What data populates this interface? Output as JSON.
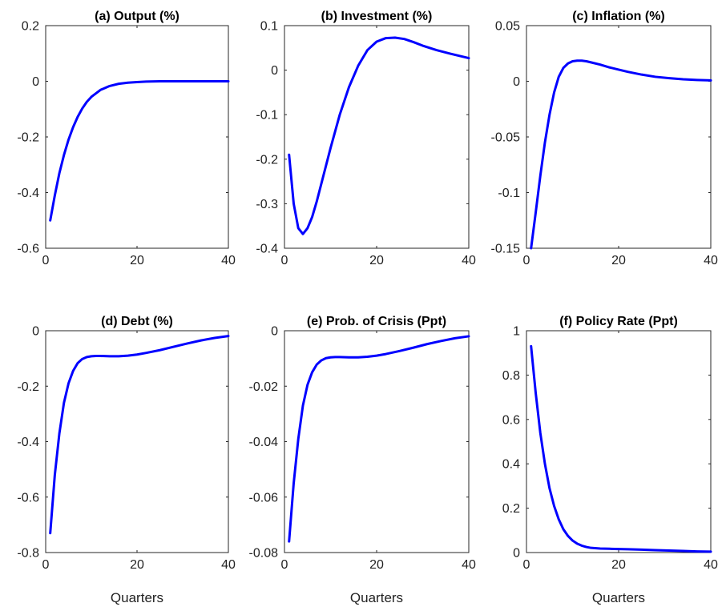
{
  "figure": {
    "background": "#ffffff",
    "line_color": "#0000ff"
  },
  "chart_data": [
    {
      "id": "a",
      "type": "line",
      "title": "(a) Output (%)",
      "xlabel": "",
      "ylabel": "",
      "xlim": [
        0,
        40
      ],
      "ylim": [
        -0.6,
        0.2
      ],
      "xticks": [
        0,
        20,
        40
      ],
      "xtick_labels": [
        "0",
        "20",
        "40"
      ],
      "yticks": [
        -0.6,
        -0.4,
        -0.2,
        0,
        0.2
      ],
      "ytick_labels": [
        "-0.6",
        "-0.4",
        "-0.2",
        "0",
        "0.2"
      ],
      "grid": false,
      "series": [
        {
          "x": [
            1,
            2,
            3,
            4,
            5,
            6,
            7,
            8,
            9,
            10,
            12,
            14,
            16,
            18,
            20,
            22,
            25,
            30,
            35,
            40
          ],
          "y": [
            -0.5,
            -0.41,
            -0.33,
            -0.265,
            -0.21,
            -0.165,
            -0.128,
            -0.098,
            -0.074,
            -0.056,
            -0.031,
            -0.017,
            -0.009,
            -0.005,
            -0.003,
            -0.001,
            0,
            0,
            0,
            0
          ]
        }
      ]
    },
    {
      "id": "b",
      "type": "line",
      "title": "(b) Investment (%)",
      "xlabel": "",
      "ylabel": "",
      "xlim": [
        0,
        40
      ],
      "ylim": [
        -0.4,
        0.1
      ],
      "xticks": [
        0,
        20,
        40
      ],
      "xtick_labels": [
        "0",
        "20",
        "40"
      ],
      "yticks": [
        -0.4,
        -0.3,
        -0.2,
        -0.1,
        0,
        0.1
      ],
      "ytick_labels": [
        "-0.4",
        "-0.3",
        "-0.2",
        "-0.1",
        "0",
        "0.1"
      ],
      "grid": false,
      "series": [
        {
          "x": [
            1,
            2,
            3,
            4,
            5,
            6,
            7,
            8,
            10,
            12,
            14,
            16,
            18,
            20,
            22,
            24,
            26,
            28,
            30,
            33,
            36,
            40
          ],
          "y": [
            -0.19,
            -0.3,
            -0.355,
            -0.368,
            -0.355,
            -0.33,
            -0.295,
            -0.255,
            -0.175,
            -0.1,
            -0.038,
            0.01,
            0.045,
            0.064,
            0.072,
            0.073,
            0.07,
            0.063,
            0.055,
            0.045,
            0.037,
            0.027
          ]
        }
      ]
    },
    {
      "id": "c",
      "type": "line",
      "title": "(c) Inflation (%)",
      "xlabel": "",
      "ylabel": "",
      "xlim": [
        0,
        40
      ],
      "ylim": [
        -0.15,
        0.05
      ],
      "xticks": [
        0,
        20,
        40
      ],
      "xtick_labels": [
        "0",
        "20",
        "40"
      ],
      "yticks": [
        -0.15,
        -0.1,
        -0.05,
        0,
        0.05
      ],
      "ytick_labels": [
        "-0.15",
        "-0.1",
        "-0.05",
        "0",
        "0.05"
      ],
      "grid": false,
      "series": [
        {
          "x": [
            1,
            2,
            3,
            4,
            5,
            6,
            7,
            8,
            9,
            10,
            11,
            12,
            13,
            14,
            16,
            18,
            20,
            22,
            25,
            28,
            31,
            34,
            37,
            40
          ],
          "y": [
            -0.15,
            -0.118,
            -0.085,
            -0.055,
            -0.03,
            -0.01,
            0.004,
            0.012,
            0.016,
            0.018,
            0.0185,
            0.0185,
            0.018,
            0.017,
            0.015,
            0.0125,
            0.0105,
            0.0085,
            0.006,
            0.004,
            0.0028,
            0.0018,
            0.0012,
            0.0008
          ]
        }
      ]
    },
    {
      "id": "d",
      "type": "line",
      "title": "(d) Debt (%)",
      "xlabel": "Quarters",
      "ylabel": "",
      "xlim": [
        0,
        40
      ],
      "ylim": [
        -0.8,
        0
      ],
      "xticks": [
        0,
        20,
        40
      ],
      "xtick_labels": [
        "0",
        "20",
        "40"
      ],
      "yticks": [
        -0.8,
        -0.6,
        -0.4,
        -0.2,
        0
      ],
      "ytick_labels": [
        "-0.8",
        "-0.6",
        "-0.4",
        "-0.2",
        "0"
      ],
      "grid": false,
      "series": [
        {
          "x": [
            1,
            2,
            3,
            4,
            5,
            6,
            7,
            8,
            9,
            10,
            11,
            12,
            14,
            16,
            18,
            20,
            22,
            25,
            28,
            31,
            34,
            37,
            40
          ],
          "y": [
            -0.73,
            -0.52,
            -0.37,
            -0.26,
            -0.19,
            -0.145,
            -0.117,
            -0.102,
            -0.095,
            -0.092,
            -0.091,
            -0.091,
            -0.092,
            -0.092,
            -0.09,
            -0.086,
            -0.08,
            -0.07,
            -0.058,
            -0.046,
            -0.035,
            -0.026,
            -0.019
          ]
        }
      ]
    },
    {
      "id": "e",
      "type": "line",
      "title": "(e) Prob. of Crisis (Ppt)",
      "xlabel": "Quarters",
      "ylabel": "",
      "xlim": [
        0,
        40
      ],
      "ylim": [
        -0.08,
        0
      ],
      "xticks": [
        0,
        20,
        40
      ],
      "xtick_labels": [
        "0",
        "20",
        "40"
      ],
      "yticks": [
        -0.08,
        -0.06,
        -0.04,
        -0.02,
        0
      ],
      "ytick_labels": [
        "-0.08",
        "-0.06",
        "-0.04",
        "-0.02",
        "0"
      ],
      "grid": false,
      "series": [
        {
          "x": [
            1,
            2,
            3,
            4,
            5,
            6,
            7,
            8,
            9,
            10,
            11,
            12,
            14,
            16,
            18,
            20,
            22,
            25,
            28,
            31,
            34,
            37,
            40
          ],
          "y": [
            -0.076,
            -0.055,
            -0.039,
            -0.027,
            -0.0195,
            -0.015,
            -0.0122,
            -0.0107,
            -0.0099,
            -0.0096,
            -0.0095,
            -0.0095,
            -0.0096,
            -0.0096,
            -0.0094,
            -0.009,
            -0.0084,
            -0.0073,
            -0.0061,
            -0.0048,
            -0.0037,
            -0.0027,
            -0.002
          ]
        }
      ]
    },
    {
      "id": "f",
      "type": "line",
      "title": "(f) Policy Rate (Ppt)",
      "xlabel": "Quarters",
      "ylabel": "",
      "xlim": [
        0,
        40
      ],
      "ylim": [
        0,
        1
      ],
      "xticks": [
        0,
        20,
        40
      ],
      "xtick_labels": [
        "0",
        "20",
        "40"
      ],
      "yticks": [
        0,
        0.2,
        0.4,
        0.6,
        0.8,
        1
      ],
      "ytick_labels": [
        "0",
        "0.2",
        "0.4",
        "0.6",
        "0.8",
        "1"
      ],
      "grid": false,
      "series": [
        {
          "x": [
            1,
            2,
            3,
            4,
            5,
            6,
            7,
            8,
            9,
            10,
            11,
            12,
            13,
            14,
            16,
            18,
            20,
            22,
            25,
            28,
            31,
            34,
            37,
            40
          ],
          "y": [
            0.93,
            0.72,
            0.54,
            0.4,
            0.29,
            0.21,
            0.15,
            0.105,
            0.075,
            0.054,
            0.04,
            0.031,
            0.025,
            0.021,
            0.018,
            0.017,
            0.016,
            0.015,
            0.013,
            0.011,
            0.009,
            0.007,
            0.005,
            0.004
          ]
        }
      ]
    }
  ]
}
